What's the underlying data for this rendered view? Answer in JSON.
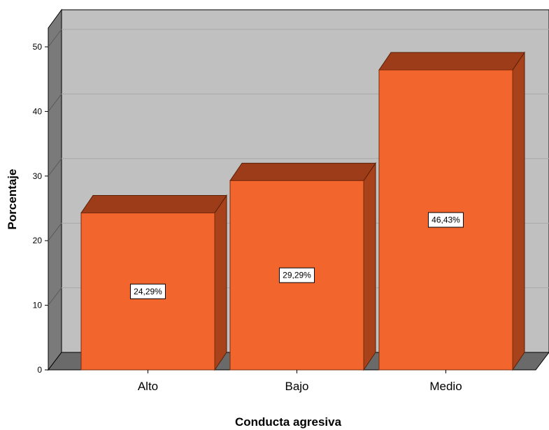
{
  "chart_data": {
    "type": "bar",
    "categories": [
      "Alto",
      "Bajo",
      "Medio"
    ],
    "values": [
      24.29,
      29.29,
      46.43
    ],
    "data_labels": [
      "24,29%",
      "29,29%",
      "46,43%"
    ],
    "xlabel": "Conducta agresiva",
    "ylabel": "Porcentaje",
    "ylim": [
      0,
      50
    ],
    "yticks": [
      "0",
      "10",
      "20",
      "30",
      "40",
      "50"
    ],
    "grid": true,
    "style": "3d-bar",
    "colors": {
      "bar_front": "#f2652c",
      "bar_top": "#9c3c18",
      "bar_side": "#a8421b",
      "wall": "#c0c0c0",
      "side_wall": "#7a7a7a",
      "floor": "#6a6a6a"
    }
  }
}
